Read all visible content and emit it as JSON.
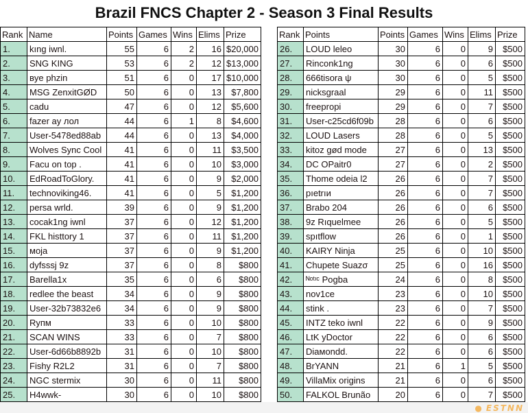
{
  "title": "Brazil FNCS Chapter 2 - Season 3 Final Results",
  "headers_left": [
    "Rank",
    "Name",
    "Points",
    "Games",
    "Wins",
    "Elims",
    "Prize"
  ],
  "headers_right": [
    "Rank",
    "Points",
    "Points",
    "Games",
    "Wins",
    "Elims",
    "Prize"
  ],
  "colors": {
    "rank_bg": "#b7e1cd",
    "watermark": "#f4b860"
  },
  "watermark": "ESTNN",
  "rows_left": [
    [
      "1.",
      "kıng iwnl.",
      "55",
      "6",
      "2",
      "16",
      "$20,000"
    ],
    [
      "2.",
      "SNG KING",
      "53",
      "6",
      "2",
      "12",
      "$13,000"
    ],
    [
      "3.",
      "вye phzin",
      "51",
      "6",
      "0",
      "17",
      "$10,000"
    ],
    [
      "4.",
      "MSG ZenxitGØD",
      "50",
      "6",
      "0",
      "13",
      "$7,800"
    ],
    [
      "5.",
      "cadu",
      "47",
      "6",
      "0",
      "12",
      "$5,600"
    ],
    [
      "6.",
      "fazer ay лол",
      "44",
      "6",
      "1",
      "8",
      "$4,600"
    ],
    [
      "7.",
      "User-5478ed88ab",
      "44",
      "6",
      "0",
      "13",
      "$4,000"
    ],
    [
      "8.",
      "Wolves Sync Cool",
      "41",
      "6",
      "0",
      "11",
      "$3,500"
    ],
    [
      "9.",
      "Facu on top .",
      "41",
      "6",
      "0",
      "10",
      "$3,000"
    ],
    [
      "10.",
      "EdRoadToGlory.",
      "41",
      "6",
      "0",
      "9",
      "$2,000"
    ],
    [
      "11.",
      "technoviking46.",
      "41",
      "6",
      "0",
      "5",
      "$1,200"
    ],
    [
      "12.",
      "persa wrld.",
      "39",
      "6",
      "0",
      "9",
      "$1,200"
    ],
    [
      "13.",
      "cocak1ng iwnl",
      "37",
      "6",
      "0",
      "12",
      "$1,200"
    ],
    [
      "14.",
      "FKL histtory 1",
      "37",
      "6",
      "0",
      "11",
      "$1,200"
    ],
    [
      "15.",
      "мoja",
      "37",
      "6",
      "0",
      "9",
      "$1,200"
    ],
    [
      "16.",
      "dyfsssj 9z",
      "37",
      "6",
      "0",
      "8",
      "$800"
    ],
    [
      "17.",
      "Barella1x",
      "35",
      "6",
      "0",
      "6",
      "$800"
    ],
    [
      "18.",
      "redlee the beast",
      "34",
      "6",
      "0",
      "9",
      "$800"
    ],
    [
      "19.",
      "User-32b73832e6",
      "34",
      "6",
      "0",
      "9",
      "$800"
    ],
    [
      "20.",
      "Rупм",
      "33",
      "6",
      "0",
      "10",
      "$800"
    ],
    [
      "21.",
      "SCAN WINS",
      "33",
      "6",
      "0",
      "7",
      "$800"
    ],
    [
      "22.",
      "User-6d66b8892b",
      "31",
      "6",
      "0",
      "10",
      "$800"
    ],
    [
      "23.",
      "Fishy R2L2",
      "31",
      "6",
      "0",
      "7",
      "$800"
    ],
    [
      "24.",
      "NGC stermix",
      "30",
      "6",
      "0",
      "11",
      "$800"
    ],
    [
      "25.",
      "H4wwk-",
      "30",
      "6",
      "0",
      "10",
      "$800"
    ]
  ],
  "rows_right": [
    [
      "26.",
      "LOUD leleo",
      "30",
      "6",
      "0",
      "9",
      "$500"
    ],
    [
      "27.",
      "Rinconk1ng",
      "30",
      "6",
      "0",
      "6",
      "$500"
    ],
    [
      "28.",
      "666tisora ψ",
      "30",
      "6",
      "0",
      "5",
      "$500"
    ],
    [
      "29.",
      "nicksgraal",
      "29",
      "6",
      "0",
      "11",
      "$500"
    ],
    [
      "30.",
      "freepropi",
      "29",
      "6",
      "0",
      "7",
      "$500"
    ],
    [
      "31.",
      "User-c25cd6f09b",
      "28",
      "6",
      "0",
      "6",
      "$500"
    ],
    [
      "32.",
      "LOUD Lasers",
      "28",
      "6",
      "0",
      "5",
      "$500"
    ],
    [
      "33.",
      "kitoz gød mode",
      "27",
      "6",
      "0",
      "13",
      "$500"
    ],
    [
      "34.",
      "DC OPaitr0",
      "27",
      "6",
      "0",
      "2",
      "$500"
    ],
    [
      "35.",
      "Thome odeia l2",
      "26",
      "6",
      "0",
      "7",
      "$500"
    ],
    [
      "36.",
      "pıetrıи",
      "26",
      "6",
      "0",
      "7",
      "$500"
    ],
    [
      "37.",
      "Brabo 204",
      "26",
      "6",
      "0",
      "6",
      "$500"
    ],
    [
      "38.",
      "9z Rıquelmee",
      "26",
      "6",
      "0",
      "5",
      "$500"
    ],
    [
      "39.",
      "spıtflow",
      "26",
      "6",
      "0",
      "1",
      "$500"
    ],
    [
      "40.",
      "KAIRY Ninja",
      "25",
      "6",
      "0",
      "10",
      "$500"
    ],
    [
      "41.",
      "Chupete Suazσ",
      "25",
      "6",
      "0",
      "16",
      "$500"
    ],
    [
      "42.",
      "ᴺᵒᵗᶦᶜ Pogba",
      "24",
      "6",
      "0",
      "8",
      "$500"
    ],
    [
      "43.",
      "nov1ce",
      "23",
      "6",
      "0",
      "10",
      "$500"
    ],
    [
      "44.",
      "stink .",
      "23",
      "6",
      "0",
      "7",
      "$500"
    ],
    [
      "45.",
      "INTZ teko iwnl",
      "22",
      "6",
      "0",
      "9",
      "$500"
    ],
    [
      "46.",
      "LtK yDoctor",
      "22",
      "6",
      "0",
      "6",
      "$500"
    ],
    [
      "47.",
      "Diaмondd.",
      "22",
      "6",
      "0",
      "6",
      "$500"
    ],
    [
      "48.",
      "BrYANN",
      "21",
      "6",
      "1",
      "5",
      "$500"
    ],
    [
      "49.",
      "VillaMix origins",
      "21",
      "6",
      "0",
      "6",
      "$500"
    ],
    [
      "50.",
      "FALKOL Brunão",
      "20",
      "6",
      "0",
      "7",
      "$500"
    ]
  ]
}
